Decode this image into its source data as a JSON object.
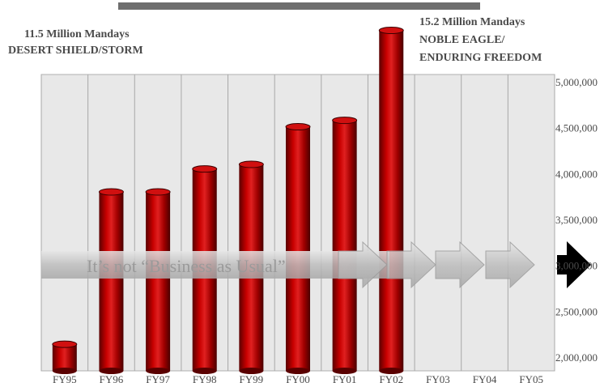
{
  "annotations": {
    "left_line1": "11.5 Million Mandays",
    "left_line2": "DESERT SHIELD/STORM",
    "right_line1": "15.2 Million Mandays",
    "right_line2": "NOBLE EAGLE/",
    "right_line3": "ENDURING FREEDOM"
  },
  "arrow_text": "It’s not “Business as Usual”",
  "colors": {
    "bar": "#b40000",
    "plot_bg": "#e8e8e8",
    "arrow": "#c4c4c4",
    "arrow_head_dark": "#000000",
    "top_bar": "#6e6e6e"
  },
  "chart_data": {
    "type": "bar",
    "categories": [
      "FY95",
      "FY96",
      "FY97",
      "FY98",
      "FY99",
      "FY00",
      "FY01",
      "FY02",
      "FY03",
      "FY04",
      "FY05"
    ],
    "values": [
      2140000,
      3800000,
      3800000,
      4050000,
      4100000,
      4510000,
      4580000,
      5560000,
      null,
      null,
      null
    ],
    "y_ticks": [
      "2,000,000",
      "2,500,000",
      "3,000,000",
      "3,500,000",
      "4,000,000",
      "4,500,000",
      "5,000,000"
    ],
    "y_tick_values": [
      2000000,
      2500000,
      3000000,
      3500000,
      4000000,
      4500000,
      5000000
    ],
    "ylim": [
      1850000,
      5000000
    ],
    "y_axis_side": "right",
    "grid": "vertical",
    "title": "",
    "xlabel": "",
    "ylabel": ""
  }
}
